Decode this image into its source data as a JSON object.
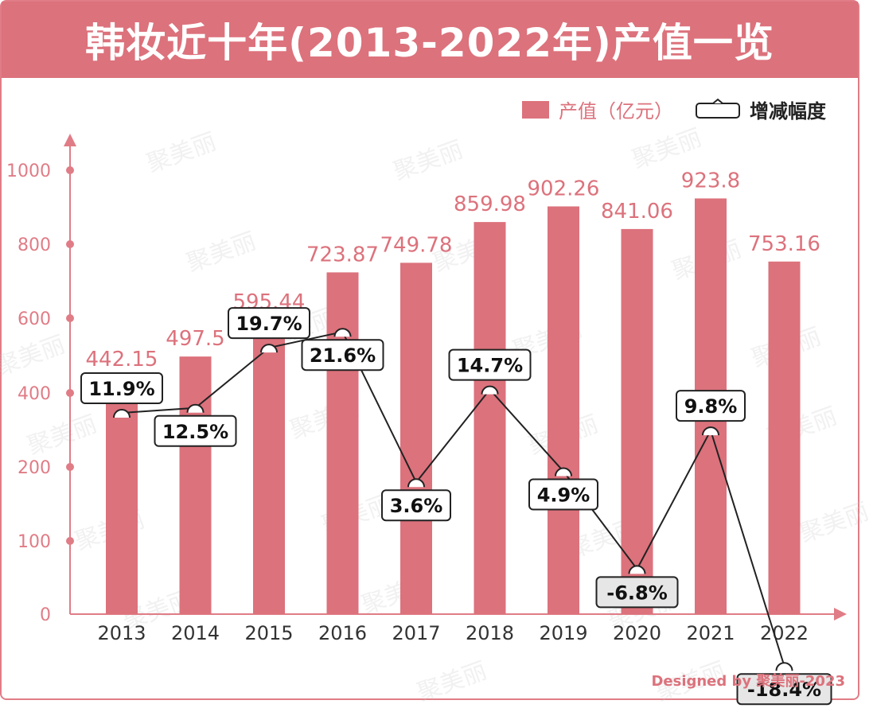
{
  "title": "韩妆近十年(2013-2022年)产值一览",
  "legend": {
    "bar_label": "产值（亿元）",
    "line_label": "增减幅度"
  },
  "credit": "Designed by 聚美丽-2023",
  "watermark_text": "聚美丽",
  "colors": {
    "bar": "#dc727c",
    "axis": "#e07c86",
    "line": "#222222",
    "label_box_positive": "#ffffff",
    "label_box_negative": "#e6e6e6"
  },
  "chart_data": {
    "type": "bar",
    "categories": [
      "2013",
      "2014",
      "2015",
      "2016",
      "2017",
      "2018",
      "2019",
      "2020",
      "2021",
      "2022"
    ],
    "y_ticks": [
      "0",
      "100",
      "200",
      "400",
      "600",
      "800",
      "1000"
    ],
    "series": [
      {
        "name": "产值（亿元）",
        "type": "bar",
        "values": [
          442.15,
          497.5,
          595.44,
          723.87,
          749.78,
          859.98,
          902.26,
          841.06,
          923.8,
          753.16
        ],
        "labels": [
          "442.15",
          "497.5",
          "595.44",
          "723.87",
          "749.78",
          "859.98",
          "902.26",
          "841.06",
          "923.8",
          "753.16"
        ]
      },
      {
        "name": "增减幅度",
        "type": "line",
        "values": [
          11.9,
          12.5,
          19.7,
          21.6,
          3.6,
          14.7,
          4.9,
          -6.8,
          9.8,
          -18.4
        ],
        "labels": [
          "11.9%",
          "12.5%",
          "19.7%",
          "21.6%",
          "3.6%",
          "14.7%",
          "4.9%",
          "-6.8%",
          "9.8%",
          "-18.4%"
        ]
      }
    ]
  }
}
